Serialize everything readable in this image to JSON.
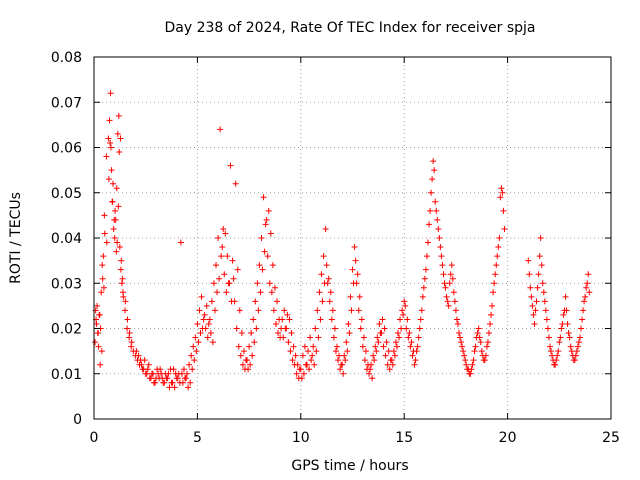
{
  "chart_data": {
    "type": "scatter",
    "title": "Day 238 of 2024, Rate Of TEC Index for receiver spja",
    "xlabel": "GPS time / hours",
    "ylabel": "ROTI / TECUs",
    "xlim": [
      0,
      25
    ],
    "ylim": [
      0,
      0.08
    ],
    "xticks": [
      0,
      5,
      10,
      15,
      20,
      25
    ],
    "xtick_labels": [
      "0",
      "5",
      "10",
      "15",
      "20",
      "25"
    ],
    "yticks": [
      0,
      0.01,
      0.02,
      0.03,
      0.04,
      0.05,
      0.06,
      0.07,
      0.08
    ],
    "ytick_labels": [
      "0",
      "0.01",
      "0.02",
      "0.03",
      "0.04",
      "0.05",
      "0.06",
      "0.07",
      "0.08"
    ],
    "grid": true,
    "marker": "+",
    "color": "#ff0000",
    "series": [
      {
        "name": "ROTI",
        "x": [
          0.05,
          0.1,
          0.15,
          0.2,
          0.25,
          0.3,
          0.35,
          0.4,
          0.45,
          0.5,
          0.6,
          0.7,
          0.75,
          0.8,
          0.85,
          0.9,
          0.95,
          1.0,
          1.05,
          1.1,
          1.15,
          1.2,
          1.25,
          1.3,
          1.35,
          1.4,
          1.5,
          1.6,
          1.7,
          1.8,
          1.9,
          2.0,
          2.1,
          2.2,
          2.3,
          2.4,
          2.5,
          2.6,
          2.7,
          2.8,
          2.9,
          3.0,
          3.1,
          3.2,
          3.3,
          3.4,
          3.5,
          3.6,
          3.7,
          3.8,
          3.9,
          4.0,
          4.1,
          4.2,
          4.3,
          4.4,
          4.5,
          4.6,
          4.7,
          4.8,
          4.9,
          5.0,
          5.1,
          5.2,
          5.3,
          5.4,
          5.5,
          5.6,
          5.7,
          5.8,
          5.9,
          6.0,
          6.1,
          6.2,
          6.3,
          6.4,
          6.5,
          6.6,
          6.7,
          6.8,
          6.9,
          7.0,
          7.1,
          7.2,
          7.3,
          7.4,
          7.5,
          7.6,
          7.7,
          7.8,
          7.9,
          8.0,
          8.1,
          8.2,
          8.3,
          8.4,
          8.5,
          8.6,
          8.7,
          8.8,
          8.9,
          9.0,
          9.1,
          9.2,
          9.3,
          9.4,
          9.5,
          9.6,
          9.7,
          9.8,
          9.9,
          10.0,
          10.1,
          10.2,
          10.3,
          10.4,
          10.5,
          10.6,
          10.7,
          10.8,
          10.9,
          11.0,
          11.1,
          11.2,
          11.3,
          11.4,
          11.5,
          11.6,
          11.7,
          11.8,
          11.9,
          12.0,
          12.1,
          12.2,
          12.3,
          12.4,
          12.5,
          12.6,
          12.7,
          12.8,
          12.9,
          13.0,
          13.1,
          13.2,
          13.3,
          13.4,
          13.5,
          13.6,
          13.7,
          13.8,
          13.9,
          14.0,
          14.1,
          14.2,
          14.3,
          14.4,
          14.5,
          14.6,
          14.7,
          14.8,
          14.9,
          15.0,
          15.1,
          15.2,
          15.3,
          15.4,
          15.5,
          15.6,
          15.7,
          15.8,
          15.9,
          16.0,
          16.1,
          16.2,
          16.3,
          16.4,
          16.5,
          16.6,
          16.7,
          16.8,
          16.9,
          17.0,
          17.1,
          17.2,
          17.3,
          17.4,
          17.5,
          17.6,
          17.7,
          17.8,
          17.9,
          18.0,
          18.1,
          18.2,
          18.3,
          18.4,
          18.5,
          18.6,
          18.7,
          18.8,
          18.9,
          19.0,
          19.1,
          19.2,
          19.3,
          19.4,
          19.5,
          19.6,
          19.7,
          19.8,
          21.0,
          21.1,
          21.2,
          21.3,
          21.4,
          21.5,
          21.6,
          21.7,
          21.8,
          21.9,
          22.0,
          22.1,
          22.2,
          22.3,
          22.4,
          22.5,
          22.6,
          22.7,
          22.8,
          22.9,
          23.0,
          23.1,
          23.2,
          23.3,
          23.4,
          23.5,
          23.6,
          23.7,
          23.8,
          23.9,
          0.08,
          0.12,
          0.18,
          0.22,
          0.28,
          0.32,
          0.38,
          0.42,
          0.48,
          0.52,
          0.62,
          0.72,
          0.78,
          0.82,
          0.88,
          0.92,
          0.98,
          1.02,
          1.08,
          1.12,
          1.18,
          1.22,
          1.28,
          1.32,
          1.38,
          1.42,
          1.52,
          1.62,
          1.72,
          1.82,
          2.05,
          2.15,
          2.25,
          2.35,
          2.45,
          2.55,
          2.65,
          2.75,
          2.85,
          2.95,
          3.05,
          3.15,
          3.25,
          3.35,
          3.45,
          3.55,
          3.65,
          3.75,
          3.85,
          3.95,
          4.05,
          4.15,
          4.25,
          4.35,
          4.45,
          4.55,
          4.65,
          4.75,
          4.85,
          4.95,
          5.05,
          5.15,
          5.25,
          5.35,
          5.45,
          5.55,
          5.65,
          5.75,
          5.85,
          5.95,
          6.05,
          6.15,
          6.25,
          6.35,
          6.45,
          6.55,
          6.65,
          6.75,
          6.85,
          6.95,
          7.05,
          7.15,
          7.25,
          7.35,
          7.45,
          7.55,
          7.65,
          7.75,
          7.85,
          7.95,
          8.05,
          8.15,
          8.25,
          8.35,
          8.45,
          8.55,
          8.65,
          8.75,
          8.85,
          8.95,
          9.05,
          9.15,
          9.25,
          9.35,
          9.45,
          9.55,
          9.65,
          9.75,
          9.85,
          9.95,
          10.05,
          10.15,
          10.25,
          10.35,
          10.45,
          10.55,
          10.65,
          10.75,
          10.85,
          10.95,
          11.05,
          11.15,
          11.25,
          11.35,
          11.45,
          11.55,
          11.65,
          11.75,
          11.85,
          11.95,
          12.05,
          12.15,
          12.25,
          12.35,
          12.45,
          12.55,
          12.65,
          12.75,
          12.85,
          12.95,
          13.05,
          13.15,
          13.25,
          13.35,
          13.45,
          13.55,
          13.65,
          13.75,
          13.85,
          13.95,
          14.05,
          14.15,
          14.25,
          14.35,
          14.45,
          14.55,
          14.65,
          14.75,
          14.85,
          14.95,
          15.05,
          15.15,
          15.25,
          15.35,
          15.45,
          15.55,
          15.65,
          15.75,
          15.85,
          15.95,
          16.05,
          16.15,
          16.25,
          16.35,
          16.45,
          16.55,
          16.65,
          16.75,
          16.85,
          16.95,
          17.05,
          17.15,
          17.25,
          17.35,
          17.45,
          17.55,
          17.65,
          17.75,
          17.85,
          17.95,
          18.05,
          18.15,
          18.25,
          18.35,
          18.45,
          18.55,
          18.65,
          18.75,
          18.85,
          18.95,
          19.05,
          19.15,
          19.25,
          19.35,
          19.45,
          19.55,
          19.65,
          19.75,
          19.85,
          21.05,
          21.15,
          21.25,
          21.35,
          21.45,
          21.55,
          21.65,
          21.75,
          21.85,
          21.95,
          22.05,
          22.15,
          22.25,
          22.35,
          22.45,
          22.55,
          22.65,
          22.75,
          22.85,
          22.95,
          23.05,
          23.15,
          23.25,
          23.35,
          23.45,
          23.55,
          23.65,
          23.75,
          23.85,
          23.95
        ],
        "y": [
          0.017,
          0.022,
          0.025,
          0.019,
          0.023,
          0.012,
          0.028,
          0.034,
          0.036,
          0.045,
          0.058,
          0.062,
          0.066,
          0.072,
          0.055,
          0.048,
          0.042,
          0.04,
          0.044,
          0.051,
          0.063,
          0.067,
          0.038,
          0.033,
          0.03,
          0.028,
          0.024,
          0.02,
          0.018,
          0.016,
          0.015,
          0.014,
          0.013,
          0.012,
          0.012,
          0.011,
          0.01,
          0.011,
          0.009,
          0.01,
          0.008,
          0.009,
          0.01,
          0.011,
          0.009,
          0.008,
          0.009,
          0.01,
          0.011,
          0.008,
          0.007,
          0.009,
          0.01,
          0.039,
          0.008,
          0.009,
          0.01,
          0.012,
          0.014,
          0.016,
          0.018,
          0.021,
          0.024,
          0.027,
          0.022,
          0.02,
          0.018,
          0.022,
          0.026,
          0.03,
          0.034,
          0.04,
          0.064,
          0.038,
          0.032,
          0.028,
          0.03,
          0.056,
          0.035,
          0.026,
          0.02,
          0.016,
          0.014,
          0.012,
          0.011,
          0.013,
          0.016,
          0.019,
          0.022,
          0.026,
          0.03,
          0.034,
          0.04,
          0.049,
          0.043,
          0.036,
          0.03,
          0.028,
          0.024,
          0.021,
          0.019,
          0.018,
          0.022,
          0.024,
          0.02,
          0.017,
          0.015,
          0.013,
          0.012,
          0.01,
          0.009,
          0.011,
          0.014,
          0.016,
          0.012,
          0.011,
          0.013,
          0.016,
          0.02,
          0.024,
          0.028,
          0.032,
          0.036,
          0.042,
          0.03,
          0.026,
          0.022,
          0.018,
          0.015,
          0.013,
          0.011,
          0.012,
          0.014,
          0.017,
          0.021,
          0.027,
          0.033,
          0.038,
          0.03,
          0.024,
          0.02,
          0.016,
          0.013,
          0.011,
          0.01,
          0.012,
          0.014,
          0.016,
          0.018,
          0.021,
          0.019,
          0.016,
          0.014,
          0.012,
          0.011,
          0.013,
          0.015,
          0.017,
          0.019,
          0.022,
          0.024,
          0.026,
          0.02,
          0.018,
          0.016,
          0.014,
          0.012,
          0.015,
          0.018,
          0.022,
          0.027,
          0.031,
          0.036,
          0.043,
          0.05,
          0.057,
          0.048,
          0.044,
          0.04,
          0.036,
          0.032,
          0.029,
          0.026,
          0.03,
          0.034,
          0.028,
          0.024,
          0.021,
          0.018,
          0.016,
          0.014,
          0.012,
          0.011,
          0.01,
          0.012,
          0.015,
          0.018,
          0.02,
          0.017,
          0.014,
          0.013,
          0.016,
          0.019,
          0.023,
          0.028,
          0.032,
          0.036,
          0.04,
          0.051,
          0.046,
          0.035,
          0.029,
          0.025,
          0.021,
          0.026,
          0.032,
          0.04,
          0.03,
          0.026,
          0.022,
          0.018,
          0.015,
          0.013,
          0.012,
          0.014,
          0.017,
          0.02,
          0.023,
          0.027,
          0.021,
          0.018,
          0.015,
          0.013,
          0.014,
          0.016,
          0.018,
          0.022,
          0.026,
          0.029,
          0.032,
          0.024,
          0.021,
          0.019,
          0.016,
          0.023,
          0.02,
          0.015,
          0.031,
          0.029,
          0.041,
          0.039,
          0.053,
          0.061,
          0.06,
          0.048,
          0.052,
          0.044,
          0.046,
          0.037,
          0.039,
          0.047,
          0.059,
          0.062,
          0.035,
          0.031,
          0.027,
          0.026,
          0.022,
          0.019,
          0.017,
          0.015,
          0.014,
          0.013,
          0.011,
          0.013,
          0.01,
          0.012,
          0.009,
          0.01,
          0.008,
          0.011,
          0.009,
          0.01,
          0.008,
          0.01,
          0.009,
          0.007,
          0.008,
          0.011,
          0.01,
          0.009,
          0.008,
          0.01,
          0.011,
          0.009,
          0.007,
          0.008,
          0.011,
          0.013,
          0.015,
          0.017,
          0.019,
          0.02,
          0.023,
          0.025,
          0.021,
          0.019,
          0.017,
          0.024,
          0.028,
          0.031,
          0.036,
          0.042,
          0.041,
          0.036,
          0.03,
          0.026,
          0.031,
          0.052,
          0.033,
          0.024,
          0.019,
          0.015,
          0.013,
          0.011,
          0.012,
          0.014,
          0.017,
          0.02,
          0.024,
          0.028,
          0.033,
          0.037,
          0.044,
          0.046,
          0.041,
          0.034,
          0.029,
          0.026,
          0.022,
          0.02,
          0.018,
          0.02,
          0.023,
          0.022,
          0.019,
          0.016,
          0.014,
          0.012,
          0.011,
          0.009,
          0.01,
          0.012,
          0.015,
          0.018,
          0.014,
          0.012,
          0.015,
          0.018,
          0.022,
          0.026,
          0.03,
          0.034,
          0.031,
          0.028,
          0.024,
          0.02,
          0.016,
          0.014,
          0.012,
          0.01,
          0.013,
          0.015,
          0.019,
          0.024,
          0.03,
          0.035,
          0.032,
          0.027,
          0.022,
          0.018,
          0.015,
          0.012,
          0.011,
          0.009,
          0.013,
          0.015,
          0.017,
          0.019,
          0.022,
          0.02,
          0.017,
          0.015,
          0.013,
          0.012,
          0.014,
          0.016,
          0.018,
          0.02,
          0.023,
          0.025,
          0.022,
          0.019,
          0.017,
          0.015,
          0.013,
          0.016,
          0.02,
          0.024,
          0.029,
          0.033,
          0.039,
          0.046,
          0.053,
          0.055,
          0.046,
          0.042,
          0.038,
          0.034,
          0.03,
          0.027,
          0.025,
          0.032,
          0.031,
          0.026,
          0.022,
          0.019,
          0.017,
          0.015,
          0.013,
          0.011,
          0.01,
          0.011,
          0.013,
          0.016,
          0.019,
          0.018,
          0.015,
          0.013,
          0.014,
          0.017,
          0.021,
          0.025,
          0.03,
          0.034,
          0.038,
          0.049,
          0.05,
          0.042,
          0.032,
          0.027,
          0.023,
          0.024,
          0.029,
          0.036,
          0.034,
          0.028,
          0.024,
          0.02,
          0.016,
          0.014,
          0.012,
          0.013,
          0.015,
          0.018,
          0.021,
          0.024,
          0.024,
          0.019,
          0.016,
          0.014,
          0.013,
          0.015,
          0.017,
          0.02,
          0.024,
          0.027,
          0.03,
          0.028
        ]
      }
    ]
  }
}
